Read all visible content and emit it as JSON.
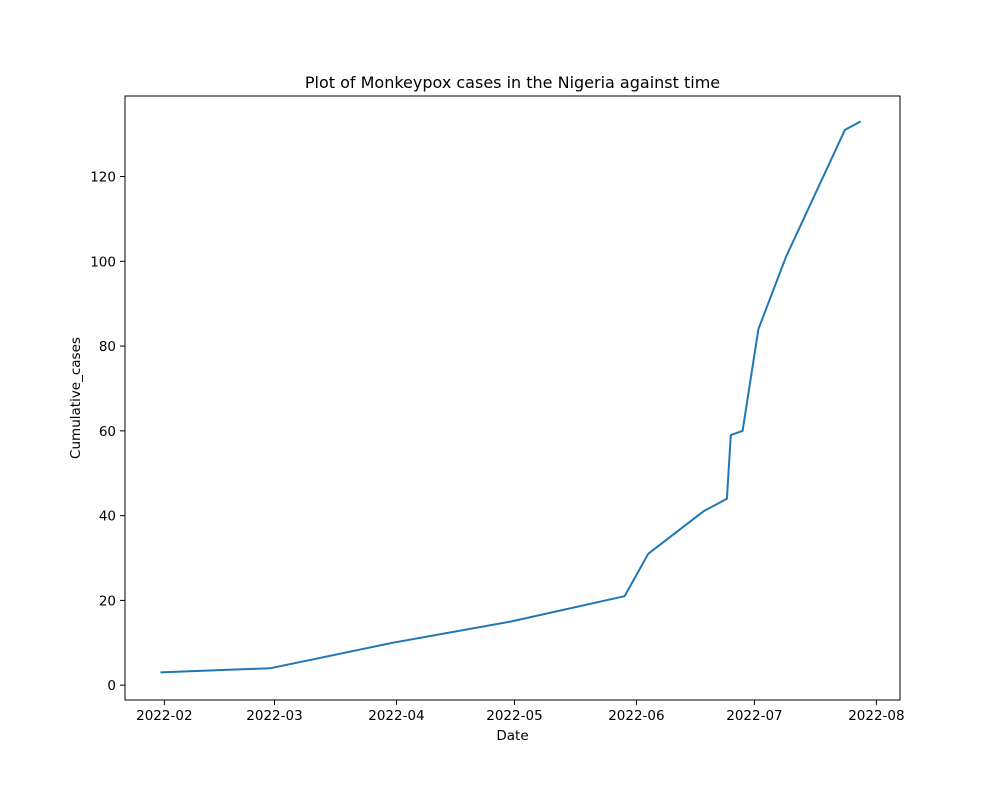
{
  "chart_data": {
    "type": "line",
    "title": "Plot of Monkeypox cases in the Nigeria against time",
    "xlabel": "Date",
    "ylabel": "Cumulative_cases",
    "xlim": [
      "2022-01-22",
      "2022-08-07"
    ],
    "ylim": [
      -3.5,
      139
    ],
    "grid": false,
    "x_ticks": [
      "2022-02",
      "2022-03",
      "2022-04",
      "2022-05",
      "2022-06",
      "2022-07",
      "2022-08"
    ],
    "y_ticks": [
      "0",
      "20",
      "40",
      "60",
      "80",
      "100",
      "120"
    ],
    "series": [
      {
        "color": "#1f77b4",
        "x": [
          "2022-01-31",
          "2022-02-28",
          "2022-03-31",
          "2022-04-30",
          "2022-05-29",
          "2022-06-04",
          "2022-06-18",
          "2022-06-24",
          "2022-06-25",
          "2022-06-28",
          "2022-07-02",
          "2022-07-09",
          "2022-07-24",
          "2022-07-28"
        ],
        "values": [
          3,
          4,
          10,
          15,
          21,
          31,
          41,
          44,
          59,
          60,
          84,
          101,
          131,
          133
        ]
      }
    ]
  }
}
